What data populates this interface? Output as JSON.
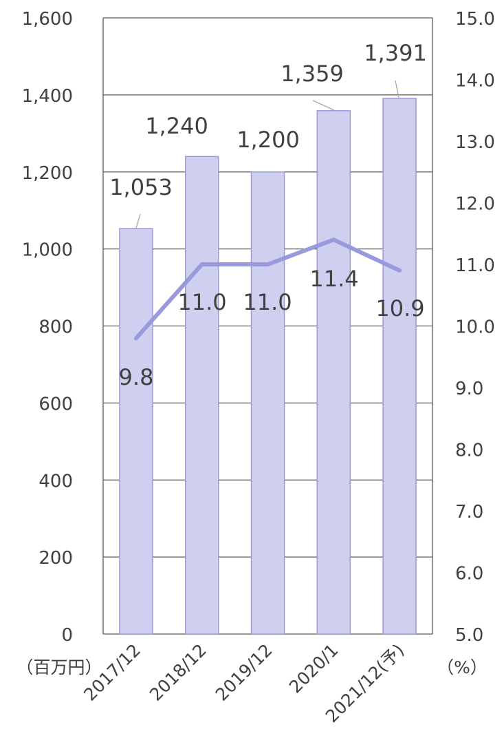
{
  "chart_data": {
    "type": "bar",
    "categories": [
      "2017/12",
      "2018/12",
      "2019/12",
      "2020/1",
      "2021/12(予)"
    ],
    "series": [
      {
        "axis": "left",
        "type": "bar",
        "values": [
          1053,
          1240,
          1200,
          1359,
          1391
        ],
        "labels": [
          "1,053",
          "1,240",
          "1,200",
          "1,359",
          "1,391"
        ]
      },
      {
        "axis": "right",
        "type": "line",
        "values": [
          9.8,
          11.0,
          11.0,
          11.4,
          10.9
        ],
        "labels": [
          "9.8",
          "11.0",
          "11.0",
          "11.4",
          "10.9"
        ]
      }
    ],
    "ylim": [
      0,
      1600
    ],
    "y2lim": [
      5.0,
      15.0
    ],
    "y_ticks": [
      "0",
      "200",
      "400",
      "600",
      "800",
      "1,000",
      "1,200",
      "1,400",
      "1,600"
    ],
    "y2_ticks": [
      "5.0",
      "6.0",
      "7.0",
      "8.0",
      "9.0",
      "10.0",
      "11.0",
      "12.0",
      "13.0",
      "14.0",
      "15.0"
    ],
    "ylabel": "（百万円）",
    "y2label": "（%）",
    "grid": true,
    "legend": "none",
    "colors": {
      "bar_fill": "#cfcff0",
      "bar_stroke": "#9a9ae0",
      "line": "#9999dd",
      "grid": "#595959",
      "text": "#404040"
    }
  }
}
